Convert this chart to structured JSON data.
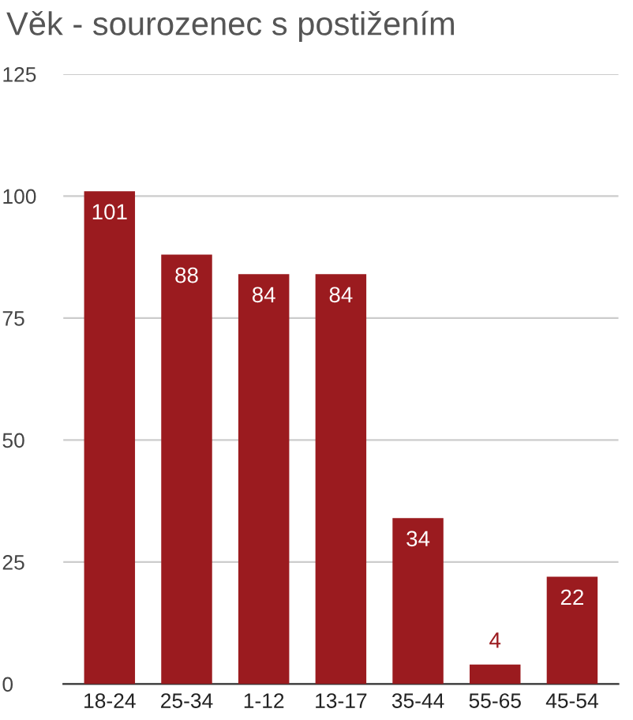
{
  "chart_data": {
    "type": "bar",
    "title": "Věk - sourozenec s postižením",
    "categories": [
      "18-24",
      "25-34",
      "1-12",
      "13-17",
      "35-44",
      "55-65",
      "45-54"
    ],
    "values": [
      101,
      88,
      84,
      84,
      34,
      4,
      22
    ],
    "color": "#9b1b1f",
    "ylim": [
      0,
      125
    ],
    "yticks": [
      0,
      25,
      50,
      75,
      100,
      125
    ],
    "grid": "y",
    "data_labels": true
  }
}
